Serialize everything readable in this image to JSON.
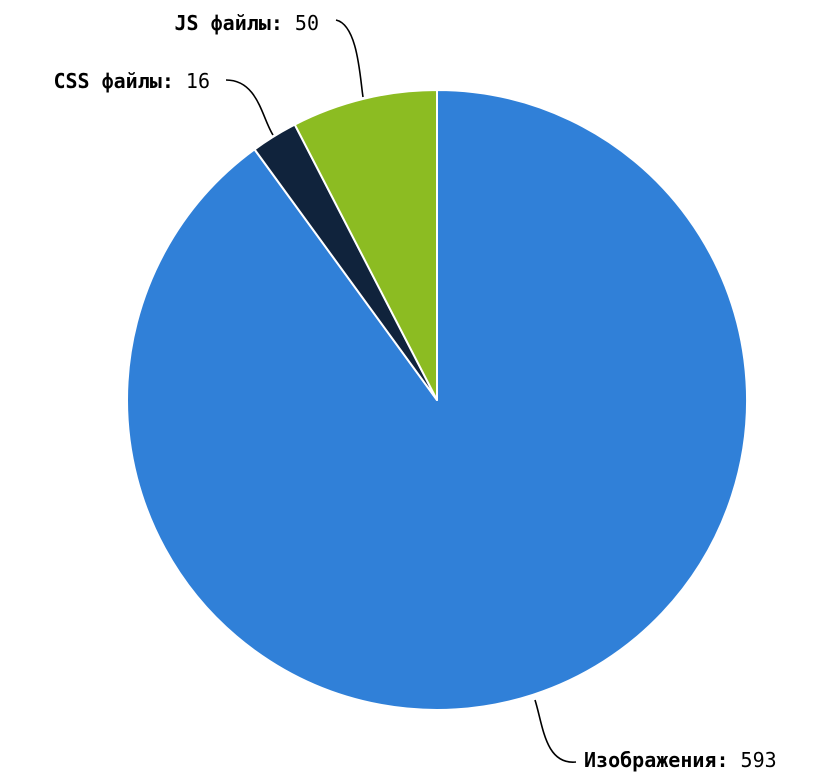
{
  "chart_data": {
    "type": "pie",
    "start_angle_deg": 0,
    "direction": "clockwise",
    "slices": [
      {
        "label": "Изображения",
        "value": 593,
        "color": "#3080d8"
      },
      {
        "label": "CSS файлы",
        "value": 16,
        "color": "#10233c"
      },
      {
        "label": "JS файлы",
        "value": 50,
        "color": "#8cbc22"
      }
    ],
    "label_separator": ":",
    "legend": "none",
    "title": ""
  }
}
